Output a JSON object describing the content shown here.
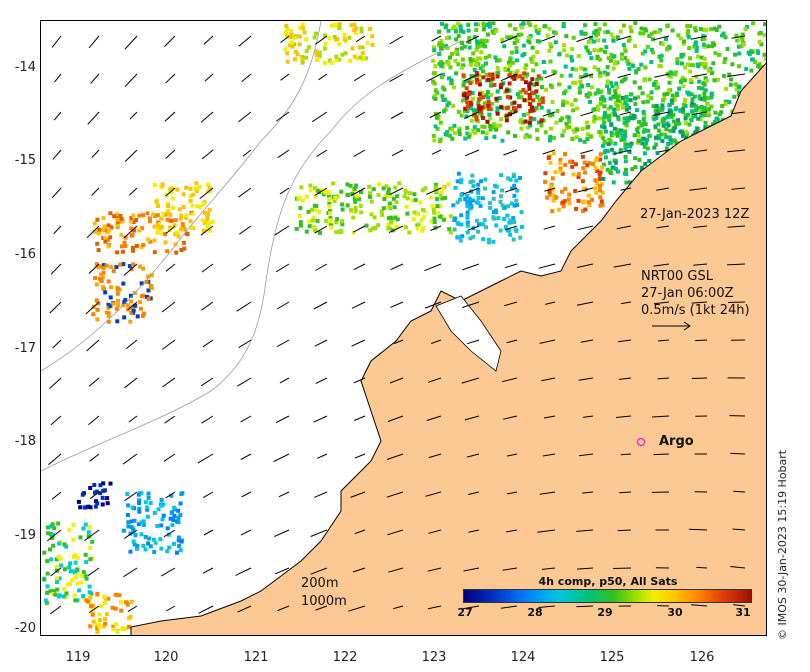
{
  "axes": {
    "y_ticks": [
      "-14",
      "-15",
      "-16",
      "-17",
      "-18",
      "-19",
      "-20"
    ],
    "x_ticks": [
      "119",
      "120",
      "121",
      "122",
      "123",
      "124",
      "125",
      "126"
    ]
  },
  "annotations": {
    "timestamp_label": "27-Jan-2023 12Z",
    "current_source": "NRT00 GSL",
    "current_time": "27-Jan 06:00Z",
    "current_scale": "0.5m/s (1kt 24h)",
    "argo_label": "Argo",
    "contour_200": "200m",
    "contour_1000": "1000m"
  },
  "colorbar": {
    "title": "4h comp, p50, All Sats",
    "ticks": [
      "27",
      "28",
      "29",
      "30",
      "31"
    ]
  },
  "credit": "© IMOS 30-Jan-2023 15:19 Hobart",
  "colors": {
    "land": "#fcc995",
    "argo": "#e000e0"
  }
}
